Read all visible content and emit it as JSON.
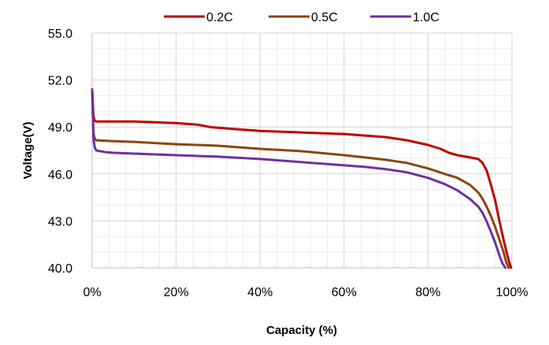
{
  "chart_data": {
    "type": "line",
    "title": "",
    "xlabel": "Capacity (%)",
    "ylabel": "Voltage(V)",
    "xlim": [
      0,
      100
    ],
    "ylim": [
      40,
      55
    ],
    "x_ticks": [
      "0%",
      "20%",
      "40%",
      "60%",
      "80%",
      "100%"
    ],
    "x_tick_values": [
      0,
      20,
      40,
      60,
      80,
      100
    ],
    "y_ticks": [
      "40.0",
      "43.0",
      "46.0",
      "49.0",
      "52.0",
      "55.0"
    ],
    "y_tick_values": [
      40,
      43,
      46,
      49,
      52,
      55
    ],
    "grid": true,
    "legend_position": "top",
    "series": [
      {
        "name": "0.2C",
        "color": "#C00000",
        "x": [
          0,
          0.3,
          0.6,
          1,
          5,
          10,
          15,
          20,
          25,
          28,
          30,
          35,
          40,
          50,
          60,
          65,
          70,
          75,
          80,
          83,
          85,
          87,
          90,
          92,
          93,
          94,
          95,
          96,
          97,
          98,
          98.7,
          99.3,
          99.8
        ],
        "y": [
          51.4,
          49.7,
          49.4,
          49.35,
          49.35,
          49.35,
          49.3,
          49.25,
          49.15,
          49.0,
          48.95,
          48.85,
          48.75,
          48.65,
          48.55,
          48.45,
          48.35,
          48.15,
          47.85,
          47.6,
          47.35,
          47.2,
          47.05,
          46.95,
          46.7,
          46.2,
          45.3,
          44.3,
          43.0,
          41.8,
          41.0,
          40.4,
          40.0
        ]
      },
      {
        "name": "0.5C",
        "color": "#8B4513",
        "x": [
          0,
          0.3,
          0.6,
          1,
          5,
          10,
          20,
          30,
          40,
          50,
          60,
          65,
          70,
          75,
          80,
          84,
          87,
          90,
          92,
          93,
          94,
          95,
          96,
          97,
          98,
          98.6,
          99.2
        ],
        "y": [
          51.4,
          48.6,
          48.25,
          48.15,
          48.1,
          48.05,
          47.9,
          47.8,
          47.6,
          47.45,
          47.2,
          47.05,
          46.9,
          46.7,
          46.35,
          46.0,
          45.75,
          45.3,
          44.8,
          44.4,
          43.9,
          43.3,
          42.6,
          41.8,
          41.0,
          40.4,
          40.0
        ]
      },
      {
        "name": "1.0C",
        "color": "#7030A0",
        "x": [
          0,
          0.3,
          0.6,
          1,
          3,
          5,
          10,
          20,
          30,
          40,
          50,
          60,
          65,
          70,
          75,
          80,
          84,
          87,
          90,
          92,
          93,
          94,
          95,
          96,
          97,
          97.7,
          98.4
        ],
        "y": [
          51.4,
          48.3,
          47.7,
          47.5,
          47.4,
          47.35,
          47.3,
          47.2,
          47.1,
          46.95,
          46.75,
          46.55,
          46.45,
          46.3,
          46.1,
          45.75,
          45.35,
          44.95,
          44.4,
          43.9,
          43.5,
          42.95,
          42.3,
          41.6,
          40.8,
          40.3,
          40.0
        ]
      }
    ]
  }
}
